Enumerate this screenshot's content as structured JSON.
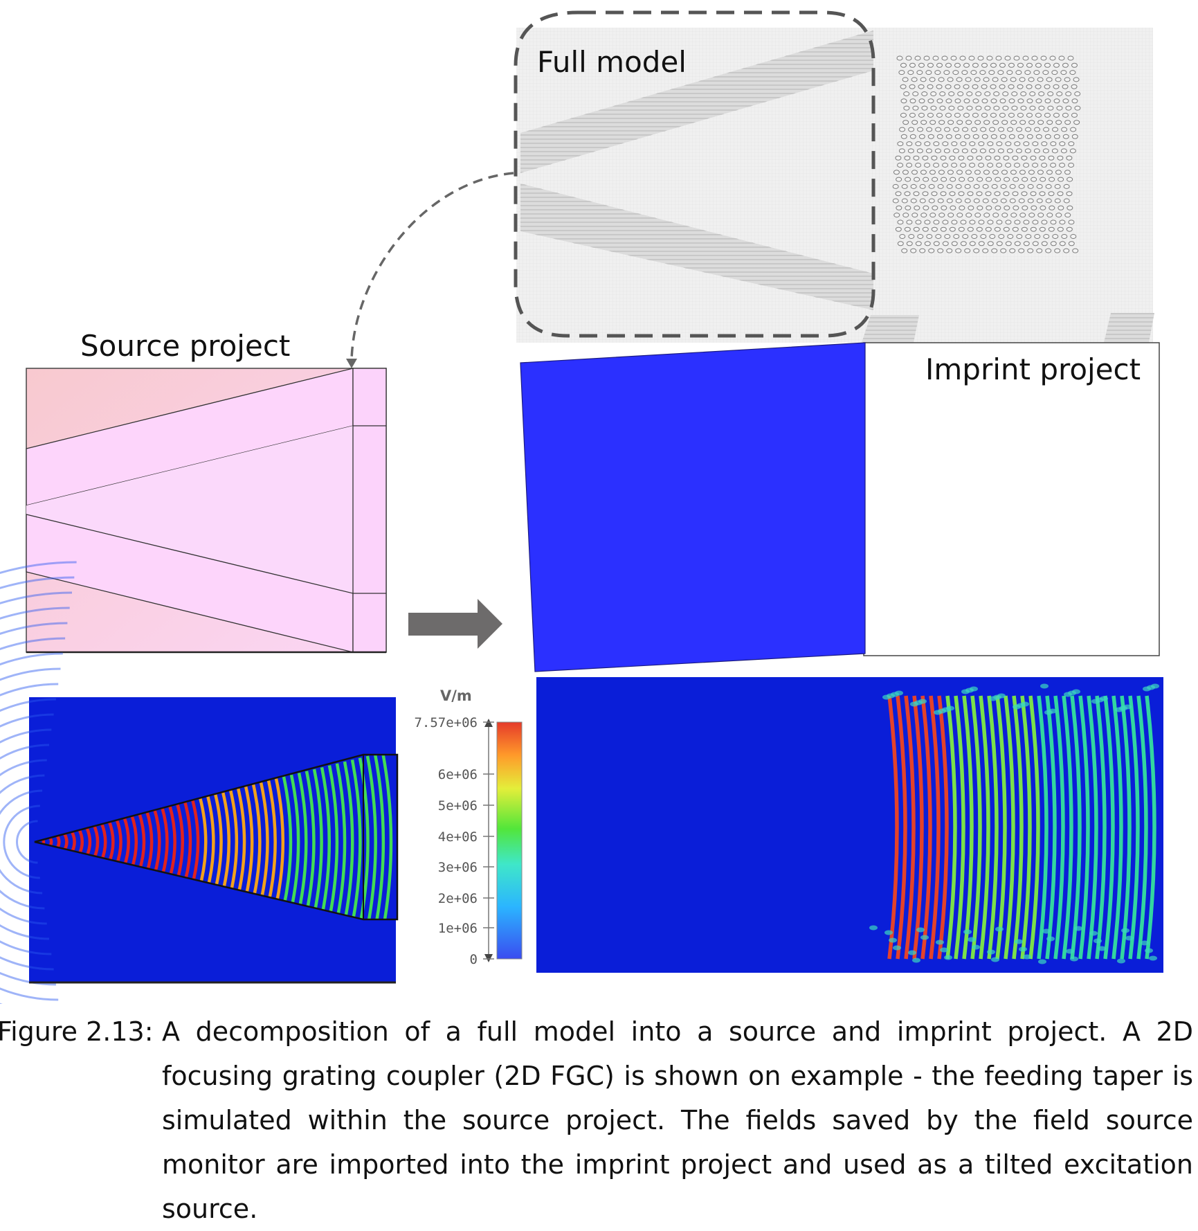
{
  "labels": {
    "full_model": "Full model",
    "source_project": "Source project",
    "imprint_project": "Imprint project"
  },
  "colorbar": {
    "unit": "V/m",
    "ticks": [
      "7.57e+06",
      "6e+06",
      "5e+06",
      "4e+06",
      "3e+06",
      "2e+06",
      "1e+06",
      "0"
    ]
  },
  "caption": {
    "label": "Figure 2.13:",
    "text": "A decomposition of a full model into a source and imprint project. A 2D focusing grating coupler (2D FGC) is shown on example - the feeding taper is simulated within the source project. The fields saved by the field source monitor are imported into the imprint project and used as a tilted excitation source."
  },
  "colors": {
    "field_background": "#0a1ed8",
    "imprint_fill": "#2b30ff",
    "source_substrate": "#f9cdd6",
    "source_taper": "#fccdfc",
    "arrow": "#6d6d6d",
    "dashed_outline": "#555555"
  }
}
